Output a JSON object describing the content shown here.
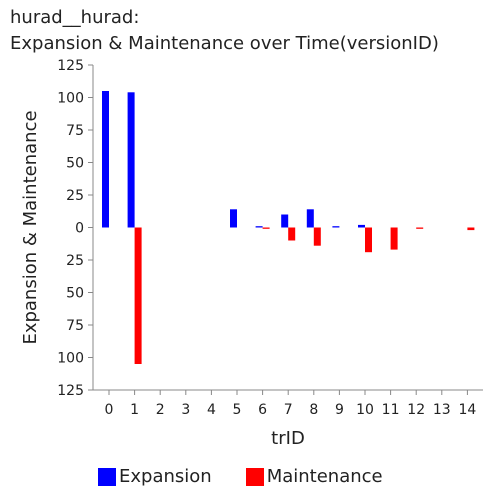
{
  "chart_title_line1": "hurad__hurad:",
  "chart_title_line2": "Expansion & Maintenance over Time(versionID)",
  "chart_data": {
    "type": "bar",
    "title": "hurad__hurad: Expansion & Maintenance over Time(versionID)",
    "xlabel": "trID",
    "ylabel": "Expansion & Maintenance",
    "categories": [
      "0",
      "1",
      "2",
      "3",
      "4",
      "5",
      "6",
      "7",
      "8",
      "9",
      "10",
      "11",
      "12",
      "13",
      "14"
    ],
    "y_ticks": [
      "125",
      "100",
      "75",
      "50",
      "25",
      "0",
      "25",
      "50",
      "75",
      "100",
      "125"
    ],
    "ylim": [
      -125,
      125
    ],
    "series": [
      {
        "name": "Expansion",
        "color": "#0000ff",
        "values": [
          105,
          104,
          0,
          0,
          0,
          14,
          1,
          10,
          14,
          1,
          2,
          0,
          0,
          0,
          0
        ]
      },
      {
        "name": "Maintenance",
        "color": "#ff0000",
        "values": [
          0,
          -105,
          0,
          0,
          0,
          0,
          -1,
          -10,
          -14,
          0,
          -19,
          -17,
          -1,
          0,
          -2
        ]
      }
    ],
    "legend_position": "bottom",
    "grid": false
  }
}
